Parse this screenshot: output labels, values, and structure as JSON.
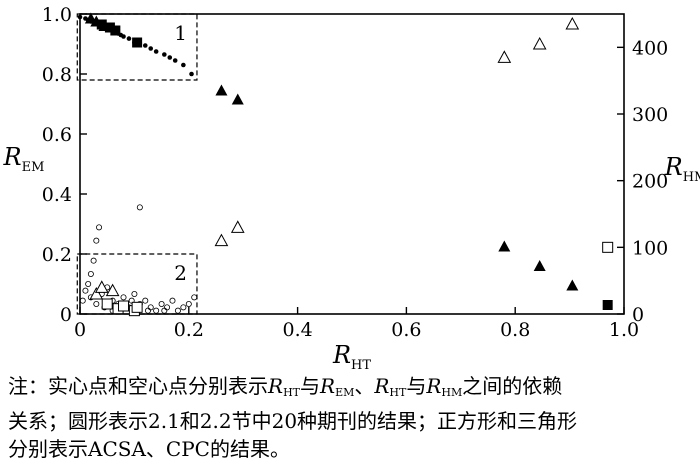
{
  "chart_data": {
    "type": "scatter",
    "x": {
      "label": "R",
      "sub": "HT",
      "lim": [
        0,
        1.0
      ],
      "ticks": [
        "0",
        "0.2",
        "0.4",
        "0.6",
        "0.8",
        "1.0"
      ],
      "tick_values": [
        0,
        0.2,
        0.4,
        0.6,
        0.8,
        1.0
      ]
    },
    "y_left": {
      "label": "R",
      "sub": "EM",
      "lim": [
        0,
        1.0
      ],
      "ticks": [
        "0",
        "0.2",
        "0.4",
        "0.6",
        "0.8",
        "1.0"
      ],
      "tick_values": [
        0,
        0.2,
        0.4,
        0.6,
        0.8,
        1.0
      ]
    },
    "y_right": {
      "label": "R",
      "sub": "HM",
      "lim": [
        0,
        450
      ],
      "ticks": [
        "0",
        "100",
        "200",
        "300",
        "400"
      ],
      "tick_values": [
        0,
        100,
        200,
        300,
        400
      ]
    },
    "boxes": [
      {
        "label": "1",
        "x": [
          -0.005,
          0.215
        ],
        "y": [
          0.78,
          1.0
        ]
      },
      {
        "label": "2",
        "x": [
          -0.005,
          0.215
        ],
        "y": [
          0.0,
          0.2
        ]
      }
    ],
    "series": [
      {
        "marker": "filled-circle",
        "axis": "left",
        "points": [
          [
            0.0,
            0.99
          ],
          [
            0.01,
            0.985
          ],
          [
            0.015,
            0.98
          ],
          [
            0.02,
            0.975
          ],
          [
            0.025,
            0.972
          ],
          [
            0.03,
            0.968
          ],
          [
            0.035,
            0.965
          ],
          [
            0.04,
            0.96
          ],
          [
            0.045,
            0.955
          ],
          [
            0.05,
            0.95
          ],
          [
            0.055,
            0.947
          ],
          [
            0.06,
            0.942
          ],
          [
            0.065,
            0.938
          ],
          [
            0.07,
            0.935
          ],
          [
            0.075,
            0.93
          ],
          [
            0.08,
            0.925
          ],
          [
            0.09,
            0.918
          ],
          [
            0.1,
            0.905
          ],
          [
            0.11,
            0.9
          ],
          [
            0.12,
            0.895
          ],
          [
            0.13,
            0.885
          ],
          [
            0.14,
            0.875
          ],
          [
            0.155,
            0.865
          ],
          [
            0.165,
            0.855
          ],
          [
            0.175,
            0.845
          ],
          [
            0.19,
            0.83
          ],
          [
            0.205,
            0.8
          ]
        ]
      },
      {
        "marker": "filled-square",
        "axis": "left",
        "points": [
          [
            0.04,
            0.965
          ],
          [
            0.055,
            0.955
          ],
          [
            0.065,
            0.945
          ],
          [
            0.105,
            0.905
          ],
          [
            0.97,
            0.03
          ]
        ]
      },
      {
        "marker": "filled-triangle",
        "axis": "left",
        "points": [
          [
            0.02,
            0.985
          ],
          [
            0.03,
            0.975
          ],
          [
            0.045,
            0.96
          ],
          [
            0.26,
            0.745
          ],
          [
            0.29,
            0.715
          ],
          [
            0.78,
            0.225
          ],
          [
            0.845,
            0.16
          ],
          [
            0.905,
            0.095
          ]
        ]
      },
      {
        "marker": "open-circle",
        "axis": "right",
        "points": [
          [
            0.005,
            20
          ],
          [
            0.01,
            35
          ],
          [
            0.015,
            45
          ],
          [
            0.02,
            60
          ],
          [
            0.025,
            80
          ],
          [
            0.03,
            110
          ],
          [
            0.035,
            130
          ],
          [
            0.02,
            25
          ],
          [
            0.04,
            30
          ],
          [
            0.05,
            40
          ],
          [
            0.06,
            20
          ],
          [
            0.07,
            15
          ],
          [
            0.08,
            25
          ],
          [
            0.09,
            10
          ],
          [
            0.1,
            30
          ],
          [
            0.11,
            15
          ],
          [
            0.12,
            20
          ],
          [
            0.13,
            10
          ],
          [
            0.14,
            5
          ],
          [
            0.15,
            15
          ],
          [
            0.16,
            10
          ],
          [
            0.17,
            20
          ],
          [
            0.18,
            5
          ],
          [
            0.19,
            10
          ],
          [
            0.2,
            15
          ],
          [
            0.21,
            25
          ],
          [
            0.11,
            160
          ],
          [
            0.06,
            5
          ],
          [
            0.03,
            15
          ],
          [
            0.045,
            10
          ],
          [
            0.075,
            5
          ],
          [
            0.095,
            20
          ],
          [
            0.125,
            5
          ],
          [
            0.155,
            5
          ]
        ]
      },
      {
        "marker": "open-square",
        "axis": "right",
        "points": [
          [
            0.05,
            15
          ],
          [
            0.07,
            8
          ],
          [
            0.08,
            12
          ],
          [
            0.1,
            5
          ],
          [
            0.105,
            10
          ],
          [
            0.97,
            100
          ]
        ]
      },
      {
        "marker": "open-triangle",
        "axis": "right",
        "points": [
          [
            0.03,
            30
          ],
          [
            0.04,
            40
          ],
          [
            0.06,
            35
          ],
          [
            0.26,
            110
          ],
          [
            0.29,
            130
          ],
          [
            0.78,
            385
          ],
          [
            0.845,
            405
          ],
          [
            0.905,
            435
          ]
        ]
      }
    ]
  },
  "note": {
    "p1": "注：实心点和空心点分别表示",
    "r1": "R",
    "s1": "HT",
    "p2": "与",
    "r2": "R",
    "s2": "EM",
    "p3": "、",
    "r3": "R",
    "s3": "HT",
    "p4": "与",
    "r4": "R",
    "s4": "HM",
    "p5": "之间的依赖",
    "line2": "关系；圆形表示2.1和2.2节中20种期刊的结果；正方形和三角形",
    "line3": "分别表示ACSA、CPC的结果。"
  }
}
